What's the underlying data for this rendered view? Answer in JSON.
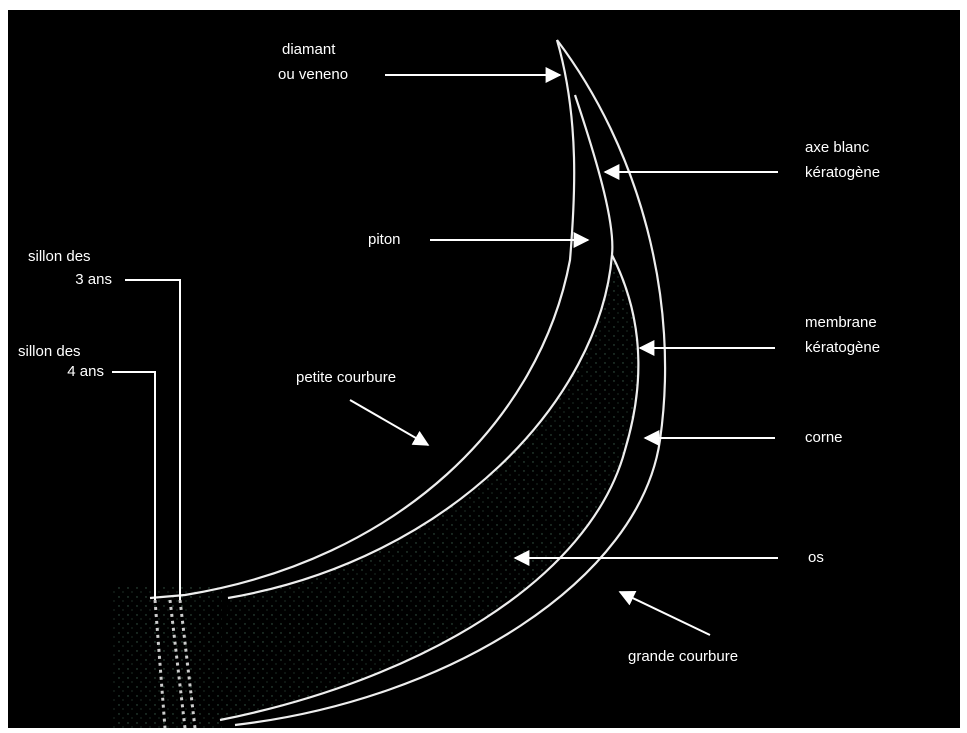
{
  "labels": {
    "diamant": [
      "diamant",
      "ou veneno"
    ],
    "axe_blanc": [
      "axe blanc",
      "kératogène"
    ],
    "piton": [
      "piton"
    ],
    "sillon_3": [
      "sillon des",
      "3 ans"
    ],
    "sillon_4": [
      "sillon des",
      "4 ans"
    ],
    "membrane": [
      "membrane",
      "kératogène"
    ],
    "petite_courbure": [
      "petite courbure"
    ],
    "corne": [
      "corne"
    ],
    "os": [
      "os"
    ],
    "grande_courbure": [
      "grande courbure"
    ]
  }
}
